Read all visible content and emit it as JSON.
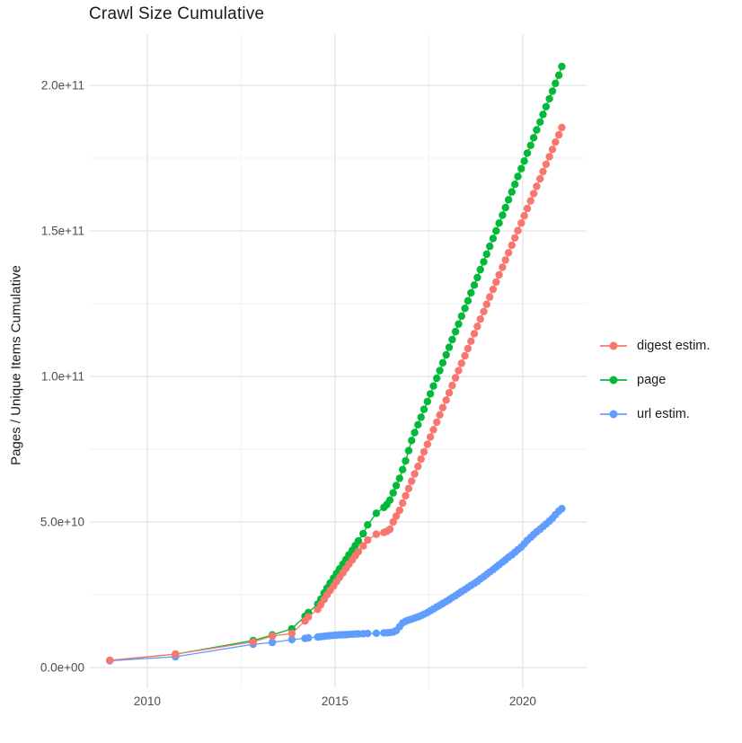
{
  "title": "Crawl Size Cumulative",
  "colors": {
    "background": "#FFFFFF",
    "grid_major": "#E6E6E6",
    "grid_minor": "#F1F1F1",
    "axis_text": "#4D4D4D",
    "title_text": "#1A1A1A",
    "digest": "#F8766D",
    "page": "#00BA38",
    "url": "#619CFF"
  },
  "chart_data": {
    "type": "scatter",
    "style": "points-with-line",
    "title": "Crawl Size Cumulative",
    "xlabel": "",
    "ylabel": "Pages / Unique Items Cumulative",
    "value_unit": "billions (1e9) of pages / unique items",
    "xlim": [
      2008.47,
      2021.7
    ],
    "ylim_billions": [
      -7.1,
      217.6
    ],
    "grid": true,
    "legend_position": "right",
    "x_ticks": [
      {
        "value": 2010,
        "label": "2010"
      },
      {
        "value": 2015,
        "label": "2015"
      },
      {
        "value": 2020,
        "label": "2020"
      }
    ],
    "x_minor": [
      2012.5,
      2017.5
    ],
    "y_ticks": [
      {
        "value_billions": 0,
        "label": "0.0e+00"
      },
      {
        "value_billions": 50,
        "label": "5.0e+10"
      },
      {
        "value_billions": 100,
        "label": "1.0e+11"
      },
      {
        "value_billions": 150,
        "label": "1.5e+11"
      },
      {
        "value_billions": 200,
        "label": "2.0e+11"
      }
    ],
    "y_minor_billions": [
      25,
      75,
      125,
      175
    ],
    "x": [
      2009.0,
      2010.75,
      2012.82,
      2013.33,
      2013.85,
      2014.2,
      2014.29,
      2014.54,
      2014.62,
      2014.71,
      2014.79,
      2014.87,
      2014.96,
      2015.04,
      2015.12,
      2015.21,
      2015.29,
      2015.37,
      2015.46,
      2015.54,
      2015.62,
      2015.75,
      2015.87,
      2016.1,
      2016.3,
      2016.38,
      2016.46,
      2016.55,
      2016.63,
      2016.72,
      2016.8,
      2016.88,
      2016.96,
      2017.04,
      2017.12,
      2017.21,
      2017.29,
      2017.37,
      2017.46,
      2017.54,
      2017.62,
      2017.71,
      2017.79,
      2017.87,
      2017.96,
      2018.04,
      2018.12,
      2018.21,
      2018.29,
      2018.37,
      2018.46,
      2018.54,
      2018.62,
      2018.71,
      2018.79,
      2018.87,
      2018.96,
      2019.04,
      2019.12,
      2019.21,
      2019.29,
      2019.37,
      2019.46,
      2019.54,
      2019.62,
      2019.71,
      2019.79,
      2019.87,
      2019.96,
      2020.04,
      2020.12,
      2020.21,
      2020.29,
      2020.37,
      2020.46,
      2020.54,
      2020.62,
      2020.71,
      2020.79,
      2020.87,
      2020.96,
      2021.04
    ],
    "series": [
      {
        "name": "digest estim.",
        "color": "#F8766D",
        "values_billions": [
          2.5,
          4.6,
          8.8,
          10.8,
          11.7,
          16.0,
          17.4,
          20.0,
          21.6,
          23.4,
          25.0,
          26.5,
          28.0,
          29.5,
          31.0,
          32.5,
          34.0,
          35.5,
          37.0,
          38.4,
          39.8,
          41.8,
          43.8,
          45.8,
          46.4,
          46.8,
          47.5,
          50.0,
          52.0,
          54.0,
          56.5,
          59.0,
          61.5,
          64.0,
          66.5,
          69.1,
          71.6,
          74.1,
          76.7,
          79.2,
          81.7,
          84.3,
          86.8,
          89.3,
          91.9,
          94.4,
          96.9,
          99.5,
          102.0,
          104.5,
          107.1,
          109.6,
          112.1,
          114.7,
          117.2,
          119.7,
          122.3,
          124.8,
          127.3,
          129.9,
          132.4,
          134.9,
          137.5,
          140.0,
          142.5,
          145.1,
          147.6,
          150.1,
          152.7,
          155.2,
          157.7,
          160.3,
          162.8,
          165.3,
          167.9,
          170.4,
          172.9,
          175.5,
          178.0,
          180.5,
          183.0,
          185.5
        ]
      },
      {
        "name": "page",
        "color": "#00BA38",
        "values_billions": [
          2.4,
          4.6,
          9.3,
          11.2,
          13.3,
          17.6,
          18.9,
          21.8,
          23.5,
          25.6,
          27.3,
          29.0,
          30.7,
          32.3,
          33.9,
          35.5,
          37.1,
          38.7,
          40.3,
          41.9,
          43.5,
          46.0,
          49.0,
          53.0,
          55.0,
          56.0,
          57.5,
          60.0,
          62.5,
          65.0,
          68.0,
          71.0,
          74.5,
          78.0,
          80.7,
          83.4,
          86.0,
          88.7,
          91.4,
          94.0,
          96.7,
          99.4,
          102.0,
          104.7,
          107.4,
          110.0,
          112.7,
          115.4,
          118.0,
          120.7,
          123.4,
          126.0,
          128.7,
          131.4,
          134.0,
          136.7,
          139.4,
          142.0,
          144.7,
          147.4,
          150.0,
          152.7,
          155.4,
          158.0,
          160.7,
          163.4,
          166.0,
          168.7,
          171.4,
          174.0,
          176.7,
          179.4,
          182.0,
          184.7,
          187.4,
          190.0,
          192.7,
          195.4,
          198.0,
          200.7,
          203.5,
          206.5
        ]
      },
      {
        "name": "url estim.",
        "color": "#619CFF",
        "values_billions": [
          2.3,
          3.7,
          8.0,
          8.6,
          9.6,
          10.0,
          10.2,
          10.5,
          10.6,
          10.75,
          10.85,
          10.95,
          11.05,
          11.1,
          11.2,
          11.25,
          11.3,
          11.4,
          11.45,
          11.5,
          11.55,
          11.6,
          11.7,
          11.8,
          11.9,
          11.95,
          12.0,
          12.2,
          12.7,
          14.0,
          15.3,
          15.9,
          16.3,
          16.6,
          17.0,
          17.4,
          17.8,
          18.3,
          18.9,
          19.5,
          20.1,
          20.8,
          21.4,
          22.0,
          22.7,
          23.3,
          24.0,
          24.7,
          25.4,
          26.1,
          26.8,
          27.5,
          28.2,
          28.9,
          29.6,
          30.4,
          31.2,
          32.0,
          32.8,
          33.6,
          34.5,
          35.3,
          36.2,
          37.0,
          37.9,
          38.7,
          39.6,
          40.5,
          41.4,
          42.5,
          43.7,
          44.7,
          45.7,
          46.6,
          47.5,
          48.4,
          49.3,
          50.3,
          51.3,
          52.5,
          53.7,
          54.6
        ]
      }
    ]
  },
  "legend": {
    "items": [
      {
        "label": "digest estim.",
        "color": "#F8766D"
      },
      {
        "label": "page",
        "color": "#00BA38"
      },
      {
        "label": "url estim.",
        "color": "#619CFF"
      }
    ]
  }
}
